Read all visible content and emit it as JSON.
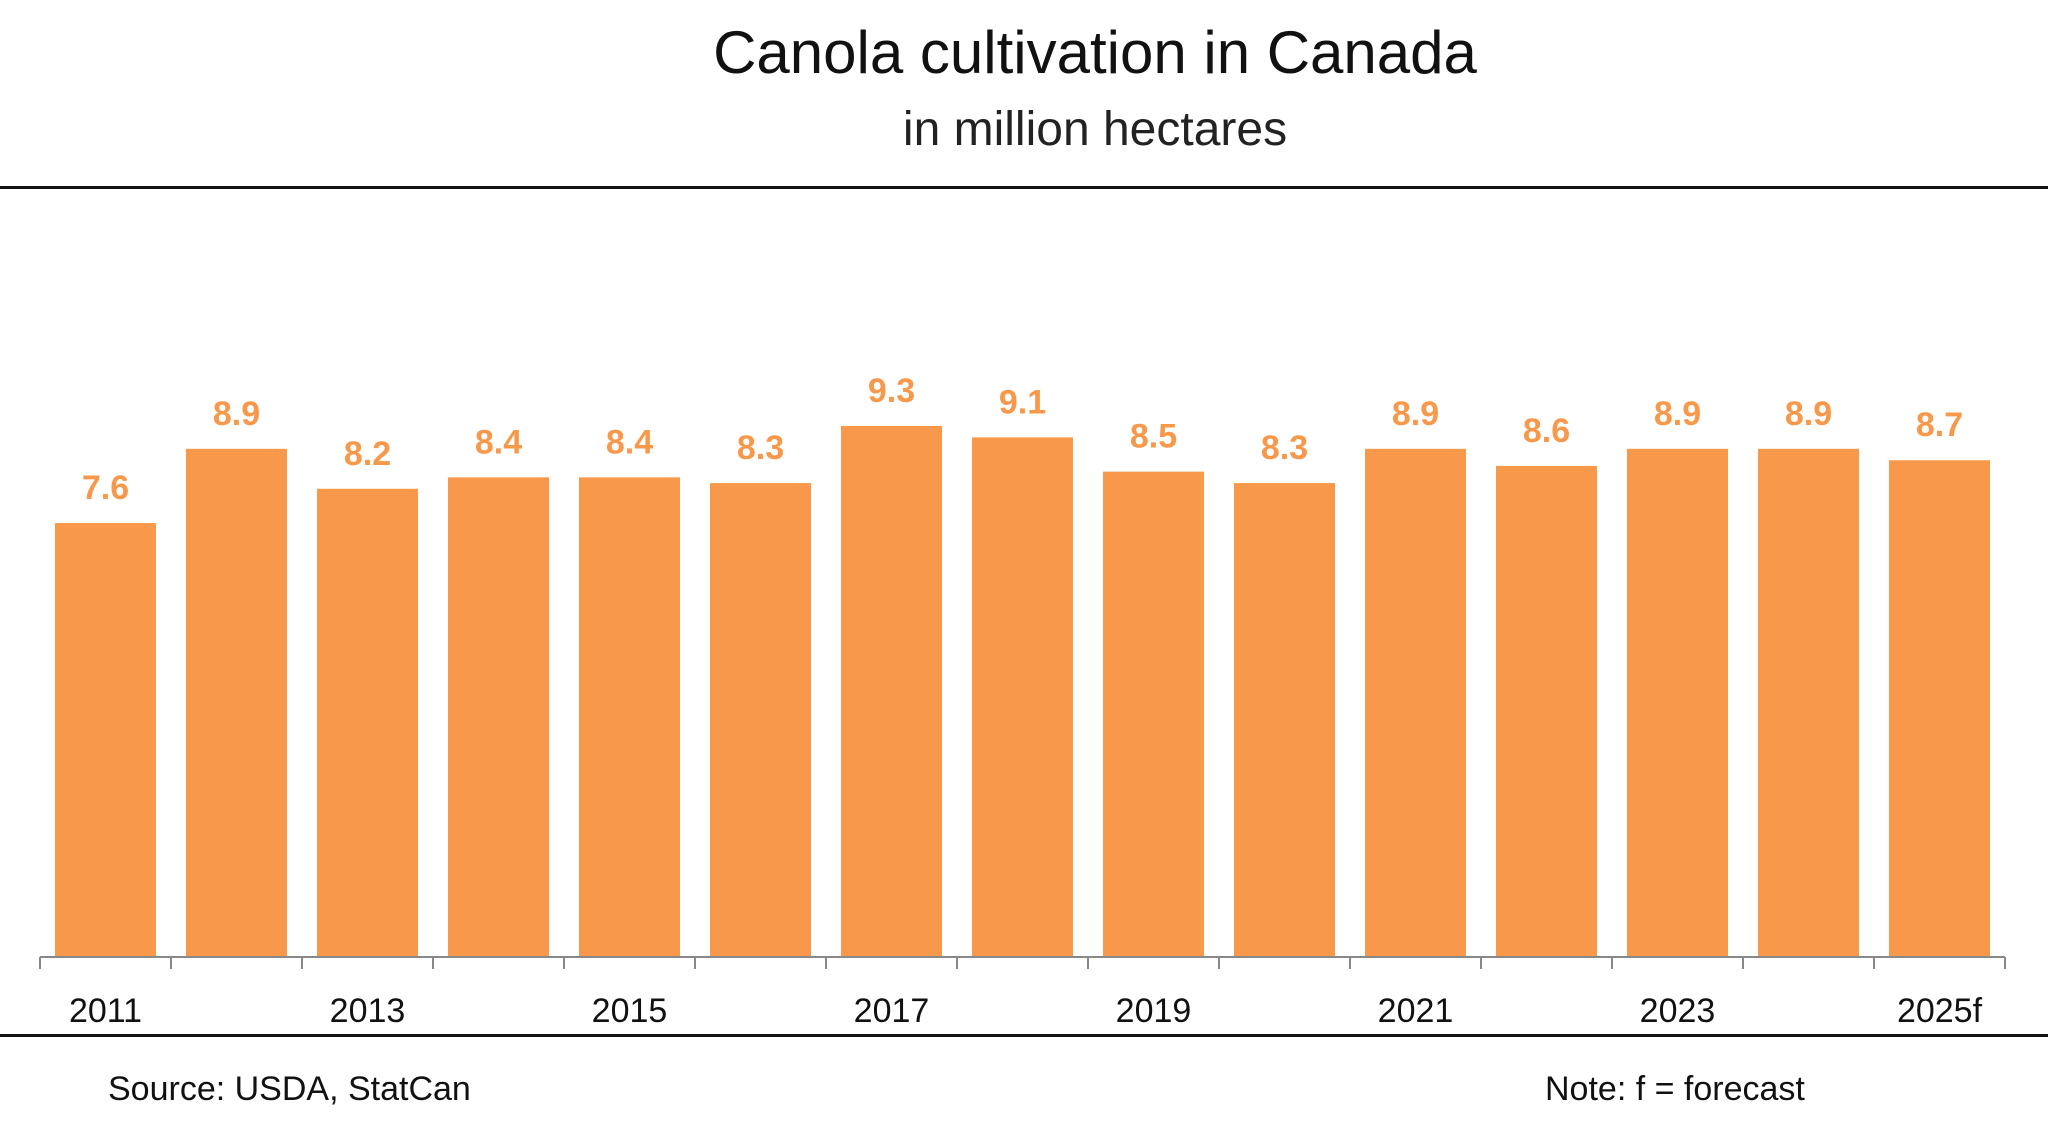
{
  "chart_data": {
    "type": "bar",
    "title": "Canola cultivation in Canada",
    "subtitle": "in million hectares",
    "categories": [
      "2011",
      "2012",
      "2013",
      "2014",
      "2015",
      "2016",
      "2017",
      "2018",
      "2019",
      "2020",
      "2021",
      "2022",
      "2023",
      "2024",
      "2025f"
    ],
    "x_tick_labels": [
      "2011",
      "",
      "2013",
      "",
      "2015",
      "",
      "2017",
      "",
      "2019",
      "",
      "2021",
      "",
      "2023",
      "",
      "2025f"
    ],
    "values": [
      7.6,
      8.9,
      8.2,
      8.4,
      8.4,
      8.3,
      9.3,
      9.1,
      8.5,
      8.3,
      8.9,
      8.6,
      8.9,
      8.9,
      8.7
    ],
    "value_labels": [
      "7.6",
      "8.9",
      "8.2",
      "8.4",
      "8.4",
      "8.3",
      "9.3",
      "9.1",
      "8.5",
      "8.3",
      "8.9",
      "8.6",
      "8.9",
      "8.9",
      "8.7"
    ],
    "xlabel": "",
    "ylabel": "",
    "ylim": [
      0,
      10
    ],
    "grid": false,
    "legend": "none",
    "bar_color": "#F7984A",
    "label_color": "#F7984A"
  },
  "footer": {
    "source": "Source: USDA, StatCan",
    "note": "Note: f = forecast"
  }
}
